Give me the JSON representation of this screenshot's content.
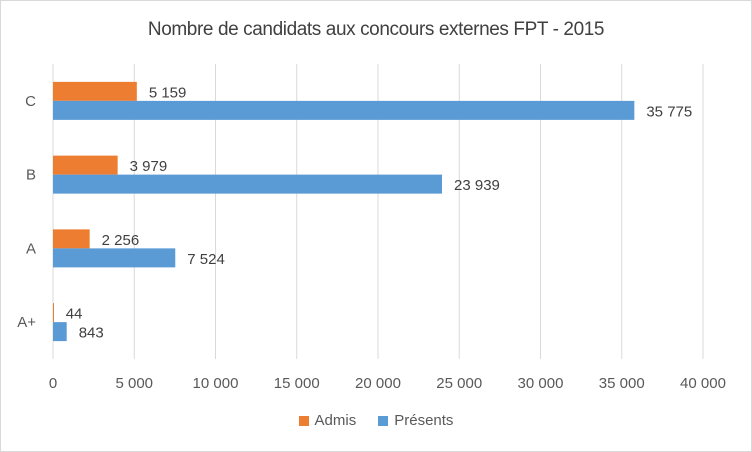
{
  "chart_data": {
    "type": "bar",
    "orientation": "horizontal",
    "title": "Nombre de candidats aux concours externes FPT - 2015",
    "categories": [
      "C",
      "B",
      "A",
      "A+"
    ],
    "series": [
      {
        "name": "Admis",
        "color": "#ed7d31",
        "values": [
          5159,
          3979,
          2256,
          44
        ],
        "labels": [
          "5 159",
          "3 979",
          "2 256",
          "44"
        ]
      },
      {
        "name": "Présents",
        "color": "#5b9bd5",
        "values": [
          35775,
          23939,
          7524,
          843
        ],
        "labels": [
          "35 775",
          "23 939",
          "7 524",
          "843"
        ]
      }
    ],
    "xlim": [
      0,
      40000
    ],
    "xticks": [
      0,
      5000,
      10000,
      15000,
      20000,
      25000,
      30000,
      35000,
      40000
    ],
    "xtick_labels": [
      "0",
      "5 000",
      "10 000",
      "15 000",
      "20 000",
      "25 000",
      "30 000",
      "35 000",
      "40 000"
    ],
    "grid": true,
    "legend_position": "bottom"
  }
}
